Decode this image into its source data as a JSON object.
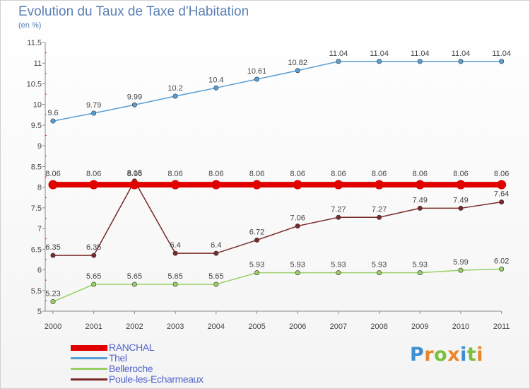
{
  "header": {
    "title": "Evolution du Taux de Taxe d'Habitation",
    "subtitle": "(en %)"
  },
  "logo": {
    "letters": [
      "P",
      "r",
      "o",
      "x",
      "i",
      "t",
      "i"
    ],
    "colors": [
      "#3d8fd1",
      "#e8872a",
      "#7cbf3d",
      "#e8872a",
      "#3d8fd1",
      "#7cbf3d",
      "#e8872a"
    ]
  },
  "chart_data": {
    "type": "line",
    "title": "Evolution du Taux de Taxe d'Habitation",
    "subtitle": "(en %)",
    "xlabel": "",
    "ylabel": "",
    "x": [
      "2000",
      "2001",
      "2002",
      "2003",
      "2004",
      "2005",
      "2006",
      "2007",
      "2008",
      "2009",
      "2010",
      "2011"
    ],
    "ylim": [
      5,
      11.5
    ],
    "yticks": [
      "5",
      "5.5",
      "6",
      "6.5",
      "7",
      "7.5",
      "8",
      "8.5",
      "9",
      "9.5",
      "10",
      "10.5",
      "11",
      "11.5"
    ],
    "grid": false,
    "legend_position": "bottom-left",
    "series": [
      {
        "name": "RANCHAL",
        "color": "#e00000",
        "values": [
          8.06,
          8.06,
          8.06,
          8.06,
          8.06,
          8.06,
          8.06,
          8.06,
          8.06,
          8.06,
          8.06,
          8.06
        ],
        "labels": [
          "8.06",
          "8.06",
          "8.06",
          "8.06",
          "8.06",
          "8.06",
          "8.06",
          "8.06",
          "8.06",
          "8.06",
          "8.06",
          "8.06"
        ]
      },
      {
        "name": "Thel",
        "color": "#5a9fd4",
        "values": [
          9.6,
          9.79,
          9.99,
          10.2,
          10.4,
          10.61,
          10.82,
          11.04,
          11.04,
          11.04,
          11.04,
          11.04
        ],
        "labels": [
          "9.6",
          "9.79",
          "9.99",
          "10.2",
          "10.4",
          "10.61",
          "10.82",
          "11.04",
          "11.04",
          "11.04",
          "11.04",
          "11.04"
        ]
      },
      {
        "name": "Belleroche",
        "color": "#99d066",
        "values": [
          5.23,
          5.65,
          5.65,
          5.65,
          5.65,
          5.93,
          5.93,
          5.93,
          5.93,
          5.93,
          5.99,
          6.02
        ],
        "labels": [
          "5.23",
          "5.65",
          "5.65",
          "5.65",
          "5.65",
          "5.93",
          "5.93",
          "5.93",
          "5.93",
          "5.93",
          "5.99",
          "6.02"
        ]
      },
      {
        "name": "Poule-les-Echarmeaux",
        "color": "#7a2a2a",
        "values": [
          6.35,
          6.35,
          8.15,
          6.4,
          6.4,
          6.72,
          7.06,
          7.27,
          7.27,
          7.49,
          7.49,
          7.64
        ],
        "labels": [
          "6.35",
          "6.35",
          "8.15",
          "6.4",
          "6.4",
          "6.72",
          "7.06",
          "7.27",
          "7.27",
          "7.49",
          "7.49",
          "7.64"
        ]
      }
    ]
  }
}
